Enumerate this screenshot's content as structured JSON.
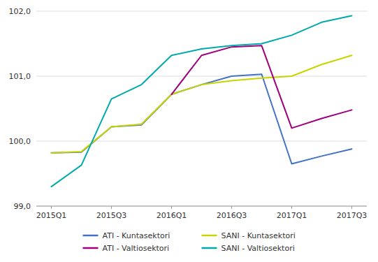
{
  "chart_data": {
    "type": "line",
    "categories": [
      "2015Q1",
      null,
      "2015Q3",
      null,
      "2016Q1",
      null,
      "2016Q3",
      null,
      "2017Q1",
      null,
      "2017Q3"
    ],
    "series": [
      {
        "name": "ATI - Kuntasektori",
        "color": "#4472C4",
        "values": [
          99.82,
          99.83,
          100.22,
          100.25,
          100.72,
          100.87,
          101.0,
          101.03,
          99.65,
          99.77,
          99.88
        ]
      },
      {
        "name": "SANI - Kuntasektori",
        "color": "#C8D400",
        "values": [
          99.82,
          99.84,
          100.22,
          100.26,
          100.72,
          100.87,
          100.93,
          100.97,
          101.0,
          101.18,
          101.32
        ]
      },
      {
        "name": "ATI - Valtiosektori",
        "color": "#A0007A",
        "values": [
          null,
          null,
          null,
          null,
          100.72,
          101.32,
          101.45,
          101.47,
          100.2,
          100.35,
          100.48
        ]
      },
      {
        "name": "SANI - Valtiosektori",
        "color": "#00AAAA",
        "values": [
          99.3,
          99.63,
          100.65,
          100.87,
          101.32,
          101.42,
          101.47,
          101.5,
          101.63,
          101.83,
          101.93
        ]
      }
    ],
    "ylim": [
      99.0,
      102.0
    ],
    "yticks": [
      {
        "value": 99.0,
        "label": "99,0"
      },
      {
        "value": 100.0,
        "label": "100,0"
      },
      {
        "value": 101.0,
        "label": "101,0"
      },
      {
        "value": 102.0,
        "label": "102,0"
      }
    ],
    "grid": true,
    "legend": "bottom"
  }
}
